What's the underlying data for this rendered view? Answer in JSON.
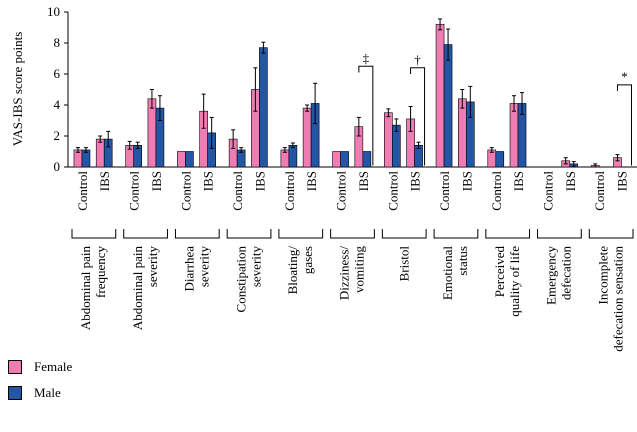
{
  "chart_data": {
    "type": "bar",
    "ylabel": "VAS-IBS score points",
    "ylim": [
      0,
      10
    ],
    "yticks": [
      "0",
      "2",
      "4",
      "6",
      "8",
      "10"
    ],
    "group_labels": [
      "Control",
      "IBS"
    ],
    "categories": [
      [
        "Abdominal pain",
        "frequency"
      ],
      [
        "Abdominal pain",
        "severity"
      ],
      [
        "Diarrhea",
        "severity"
      ],
      [
        "Constipation",
        "severity"
      ],
      [
        "Bloating/",
        "gases"
      ],
      [
        "Dizziness/",
        "vomiting"
      ],
      [
        "Bristol"
      ],
      [
        "Emotional",
        "status"
      ],
      [
        "Perceived",
        "quality of life"
      ],
      [
        "Emergency",
        "defecation"
      ],
      [
        "Incomplete",
        "defecation sensation"
      ]
    ],
    "series": [
      {
        "name": "Female",
        "color": "#f07cb4",
        "control": [
          1.1,
          1.4,
          1.0,
          1.8,
          1.1,
          1.0,
          3.5,
          9.2,
          1.1,
          0.0,
          0.1
        ],
        "control_err": [
          0.15,
          0.25,
          0.0,
          0.6,
          0.15,
          0.0,
          0.25,
          0.35,
          0.15,
          0.0,
          0.1
        ],
        "ibs": [
          1.8,
          4.4,
          3.6,
          5.0,
          3.8,
          2.6,
          3.1,
          4.4,
          4.1,
          0.4,
          0.6
        ],
        "ibs_err": [
          0.2,
          0.6,
          1.1,
          1.4,
          0.2,
          0.6,
          0.8,
          0.6,
          0.5,
          0.2,
          0.2
        ]
      },
      {
        "name": "Male",
        "color": "#2356a4",
        "control": [
          1.1,
          1.4,
          1.0,
          1.1,
          1.4,
          1.0,
          2.7,
          7.9,
          1.0,
          0.0,
          0.0
        ],
        "control_err": [
          0.15,
          0.2,
          0.0,
          0.15,
          0.15,
          0.0,
          0.4,
          1.0,
          0.0,
          0.0,
          0.0
        ],
        "ibs": [
          1.8,
          3.8,
          2.2,
          7.7,
          4.1,
          1.0,
          1.4,
          4.2,
          4.1,
          0.2,
          0.0
        ],
        "ibs_err": [
          0.5,
          0.8,
          1.0,
          0.35,
          1.3,
          0.0,
          0.2,
          1.0,
          0.7,
          0.15,
          0.0
        ]
      }
    ],
    "significance": [
      {
        "category_index": 5,
        "symbol": "‡",
        "top": 6.5
      },
      {
        "category_index": 6,
        "symbol": "†",
        "top": 6.4
      },
      {
        "category_index": 10,
        "symbol": "*",
        "top": 5.3
      }
    ],
    "legend_position": "bottom-left",
    "grid": false
  }
}
